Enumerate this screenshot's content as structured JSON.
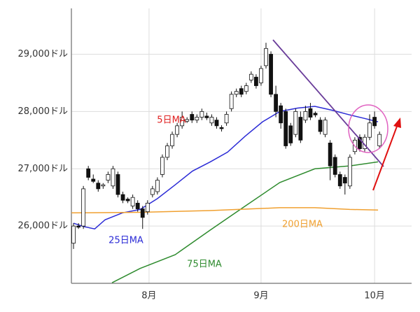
{
  "chart_data": {
    "type": "candlestick",
    "x": [
      0,
      1,
      2,
      3,
      4,
      5,
      6,
      7,
      8,
      9,
      10,
      11,
      12,
      13,
      14,
      15,
      16,
      17,
      18,
      19,
      20,
      21,
      22,
      23,
      24,
      25,
      26,
      27,
      28,
      29,
      30,
      31,
      32,
      33,
      34,
      35,
      36,
      37,
      38,
      39,
      40,
      41,
      42,
      43,
      44,
      45,
      46,
      47,
      48,
      49,
      50,
      51,
      52,
      53,
      54,
      55,
      56,
      57,
      58,
      59,
      60,
      61,
      62
    ],
    "open": [
      25700,
      26000,
      26000,
      27000,
      26820,
      26750,
      26700,
      26800,
      26700,
      26900,
      26550,
      26470,
      26350,
      26400,
      26300,
      26250,
      26550,
      26600,
      26900,
      27200,
      27400,
      27600,
      27750,
      27830,
      27950,
      27850,
      27900,
      27920,
      27800,
      27850,
      27720,
      27800,
      28050,
      28300,
      28400,
      28350,
      28550,
      28600,
      28500,
      28800,
      29000,
      28300,
      28100,
      28000,
      27750,
      27600,
      27900,
      27850,
      28050,
      27970,
      27850,
      27600,
      27450,
      27200,
      26900,
      26850,
      26700,
      27300,
      27550,
      27350,
      27550,
      27900,
      27400
    ],
    "high": [
      26050,
      26050,
      26700,
      27050,
      26900,
      26800,
      26750,
      26950,
      27050,
      26950,
      26600,
      26500,
      26550,
      26450,
      26350,
      26450,
      26700,
      26850,
      27250,
      27450,
      27650,
      27800,
      28000,
      27900,
      28000,
      27950,
      28050,
      27980,
      27950,
      27900,
      27760,
      28000,
      28350,
      28400,
      28450,
      28500,
      28700,
      28650,
      28800,
      29200,
      29050,
      28450,
      28150,
      28050,
      27800,
      28050,
      28000,
      28100,
      28150,
      28000,
      27900,
      27900,
      27500,
      27250,
      26950,
      26900,
      27250,
      27550,
      27600,
      27600,
      27950,
      28000,
      27650
    ],
    "low": [
      25600,
      25950,
      25950,
      26800,
      26750,
      26600,
      26650,
      26750,
      26650,
      26500,
      26400,
      26400,
      26300,
      26250,
      25950,
      26200,
      26500,
      26550,
      26850,
      27150,
      27350,
      27550,
      27700,
      27800,
      27800,
      27800,
      27850,
      27850,
      27750,
      27700,
      27650,
      27750,
      28000,
      28250,
      28250,
      28300,
      28500,
      28400,
      28450,
      28750,
      28250,
      27900,
      27700,
      27350,
      27400,
      27550,
      27450,
      27800,
      27850,
      27900,
      27600,
      27550,
      26800,
      26850,
      26650,
      26550,
      26650,
      27250,
      27300,
      27300,
      27500,
      27700,
      27350
    ],
    "close": [
      26000,
      25980,
      26650,
      26850,
      26780,
      26650,
      26720,
      26900,
      27000,
      26550,
      26450,
      26440,
      26500,
      26300,
      26150,
      26400,
      26650,
      26800,
      27200,
      27400,
      27600,
      27750,
      27900,
      27860,
      27850,
      27900,
      28000,
      27890,
      27900,
      27750,
      27700,
      27950,
      28300,
      28350,
      28300,
      28450,
      28650,
      28450,
      28750,
      29100,
      28300,
      28000,
      27800,
      27400,
      27450,
      28000,
      27500,
      28000,
      27900,
      27940,
      27650,
      27850,
      27050,
      26900,
      26700,
      26750,
      27200,
      27500,
      27350,
      27550,
      27800,
      27750,
      27600
    ],
    "series": [
      {
        "name": "25日MA",
        "color": "#2b2bd6",
        "x": [
          0,
          2.1,
          4.3,
          6.4,
          9.9,
          13.5,
          17,
          20.6,
          24.1,
          27.7,
          31.2,
          34.8,
          38.3,
          41.8,
          45.4,
          48.9,
          52.5,
          56,
          58.9,
          61.7
        ],
        "values": [
          26050,
          25990,
          25950,
          26110,
          26230,
          26290,
          26480,
          26720,
          26960,
          27120,
          27290,
          27570,
          27820,
          28000,
          28060,
          28090,
          28020,
          27940,
          27880,
          27820
        ]
      },
      {
        "name": "75日MA",
        "color": "#2e8b2e",
        "x": [
          7.8,
          13.5,
          20.6,
          27.7,
          34.8,
          41.8,
          48.9,
          56,
          61.7
        ],
        "values": [
          25010,
          25260,
          25500,
          25930,
          26350,
          26760,
          27000,
          27050,
          27120
        ]
      },
      {
        "name": "200日MA",
        "color": "#f0a030",
        "x": [
          -0.4,
          13.5,
          27.7,
          41.8,
          48.9,
          56,
          61.7
        ],
        "values": [
          26230,
          26240,
          26270,
          26320,
          26320,
          26290,
          26280
        ]
      }
    ],
    "annotations": [
      {
        "text": "5日MA",
        "color": "#e02020"
      }
    ],
    "xlim": [
      -0.43,
      68.5
    ],
    "xticks": [
      {
        "value": 15.3,
        "label": "8月"
      },
      {
        "value": 38,
        "label": "9月"
      },
      {
        "value": 61,
        "label": "10月"
      }
    ],
    "ylim": [
      25000,
      29800
    ],
    "yticks": [
      {
        "value": 26000,
        "label": "26,000ドル"
      },
      {
        "value": 27000,
        "label": "27,000ドル"
      },
      {
        "value": 28000,
        "label": "28,000ドル"
      },
      {
        "value": 29000,
        "label": "29,000ドル"
      }
    ],
    "grid": true
  }
}
